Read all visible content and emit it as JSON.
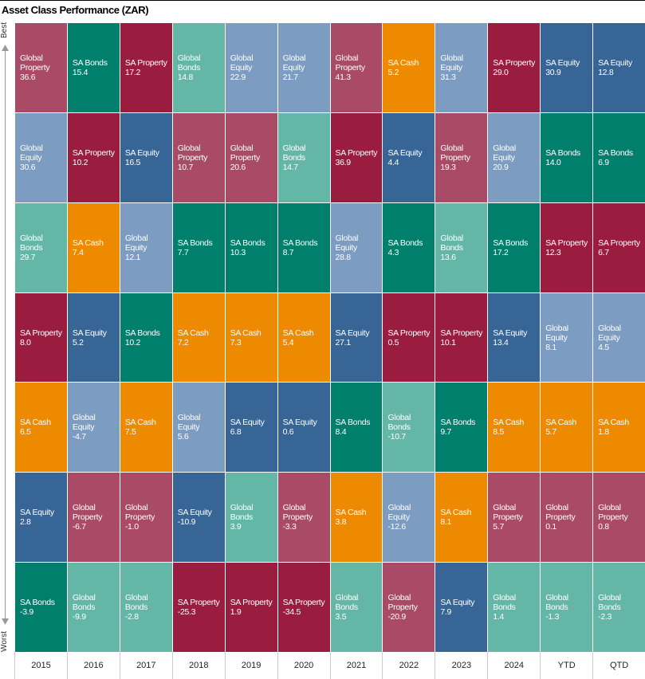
{
  "title": "Asset Class Performance (ZAR)",
  "axis": {
    "top": "Best",
    "bottom": "Worst"
  },
  "colors": {
    "Global Property": "#a94b66",
    "SA Bonds": "#007f6d",
    "SA Property": "#9a1d40",
    "Global Bonds": "#64b7a7",
    "Global Equity": "#7c9cc1",
    "SA Cash": "#ee8a00",
    "SA Equity": "#366596"
  },
  "columns": [
    {
      "label": "2015",
      "cells": [
        {
          "asset": "Global Property",
          "value": "36.6"
        },
        {
          "asset": "Global Equity",
          "value": "30.6"
        },
        {
          "asset": "Global Bonds",
          "value": "29.7"
        },
        {
          "asset": "SA Property",
          "value": "8.0"
        },
        {
          "asset": "SA Cash",
          "value": "6.5"
        },
        {
          "asset": "SA Equity",
          "value": "2.8"
        },
        {
          "asset": "SA Bonds",
          "value": "-3.9"
        }
      ]
    },
    {
      "label": "2016",
      "cells": [
        {
          "asset": "SA Bonds",
          "value": "15.4"
        },
        {
          "asset": "SA Property",
          "value": "10.2"
        },
        {
          "asset": "SA Cash",
          "value": "7.4"
        },
        {
          "asset": "SA Equity",
          "value": "5.2"
        },
        {
          "asset": "Global Equity",
          "value": "-4.7"
        },
        {
          "asset": "Global Property",
          "value": "-6.7"
        },
        {
          "asset": "Global Bonds",
          "value": "-9.9"
        }
      ]
    },
    {
      "label": "2017",
      "cells": [
        {
          "asset": "SA Property",
          "value": "17.2"
        },
        {
          "asset": "SA Equity",
          "value": "16.5"
        },
        {
          "asset": "Global Equity",
          "value": "12.1"
        },
        {
          "asset": "SA Bonds",
          "value": "10.2"
        },
        {
          "asset": "SA Cash",
          "value": "7.5"
        },
        {
          "asset": "Global Property",
          "value": "-1.0"
        },
        {
          "asset": "Global Bonds",
          "value": "-2.8"
        }
      ]
    },
    {
      "label": "2018",
      "cells": [
        {
          "asset": "Global Bonds",
          "value": "14.8"
        },
        {
          "asset": "Global Property",
          "value": "10.7"
        },
        {
          "asset": "SA Bonds",
          "value": "7.7"
        },
        {
          "asset": "SA Cash",
          "value": "7.2"
        },
        {
          "asset": "Global Equity",
          "value": "5.6"
        },
        {
          "asset": "SA Equity",
          "value": "-10.9"
        },
        {
          "asset": "SA Property",
          "value": "-25.3"
        }
      ]
    },
    {
      "label": "2019",
      "cells": [
        {
          "asset": "Global Equity",
          "value": "22.9"
        },
        {
          "asset": "Global Property",
          "value": "20.6"
        },
        {
          "asset": "SA Bonds",
          "value": "10.3"
        },
        {
          "asset": "SA Cash",
          "value": "7.3"
        },
        {
          "asset": "SA Equity",
          "value": "6.8"
        },
        {
          "asset": "Global Bonds",
          "value": "3.9"
        },
        {
          "asset": "SA Property",
          "value": "1.9"
        }
      ]
    },
    {
      "label": "2020",
      "cells": [
        {
          "asset": "Global Equity",
          "value": "21.7"
        },
        {
          "asset": "Global Bonds",
          "value": "14.7"
        },
        {
          "asset": "SA Bonds",
          "value": "8.7"
        },
        {
          "asset": "SA Cash",
          "value": "5.4"
        },
        {
          "asset": "SA Equity",
          "value": "0.6"
        },
        {
          "asset": "Global Property",
          "value": "-3.3"
        },
        {
          "asset": "SA Property",
          "value": "-34.5"
        }
      ]
    },
    {
      "label": "2021",
      "cells": [
        {
          "asset": "Global Property",
          "value": "41.3"
        },
        {
          "asset": "SA Property",
          "value": "36.9"
        },
        {
          "asset": "Global Equity",
          "value": "28.8"
        },
        {
          "asset": "SA Equity",
          "value": "27.1"
        },
        {
          "asset": "SA Bonds",
          "value": "8.4"
        },
        {
          "asset": "SA Cash",
          "value": "3.8"
        },
        {
          "asset": "Global Bonds",
          "value": "3.5"
        }
      ]
    },
    {
      "label": "2022",
      "cells": [
        {
          "asset": "SA Cash",
          "value": "5.2"
        },
        {
          "asset": "SA Equity",
          "value": "4.4"
        },
        {
          "asset": "SA Bonds",
          "value": "4.3"
        },
        {
          "asset": "SA Property",
          "value": "0.5"
        },
        {
          "asset": "Global Bonds",
          "value": "-10.7"
        },
        {
          "asset": "Global Equity",
          "value": "-12.6"
        },
        {
          "asset": "Global Property",
          "value": "-20.9"
        }
      ]
    },
    {
      "label": "2023",
      "cells": [
        {
          "asset": "Global Equity",
          "value": "31.3"
        },
        {
          "asset": "Global Property",
          "value": "19.3"
        },
        {
          "asset": "Global Bonds",
          "value": "13.6"
        },
        {
          "asset": "SA Property",
          "value": "10.1"
        },
        {
          "asset": "SA Bonds",
          "value": "9.7"
        },
        {
          "asset": "SA Cash",
          "value": "8.1"
        },
        {
          "asset": "SA Equity",
          "value": "7.9"
        }
      ]
    },
    {
      "label": "2024",
      "cells": [
        {
          "asset": "SA Property",
          "value": "29.0"
        },
        {
          "asset": "Global Equity",
          "value": "20.9"
        },
        {
          "asset": "SA Bonds",
          "value": "17.2"
        },
        {
          "asset": "SA Equity",
          "value": "13.4"
        },
        {
          "asset": "SA Cash",
          "value": "8.5"
        },
        {
          "asset": "Global Property",
          "value": "5.7"
        },
        {
          "asset": "Global Bonds",
          "value": "1.4"
        }
      ]
    },
    {
      "label": "YTD",
      "cells": [
        {
          "asset": "SA Equity",
          "value": "30.9"
        },
        {
          "asset": "SA Bonds",
          "value": "14.0"
        },
        {
          "asset": "SA Property",
          "value": "12.3"
        },
        {
          "asset": "Global Equity",
          "value": "8.1"
        },
        {
          "asset": "SA Cash",
          "value": "5.7"
        },
        {
          "asset": "Global Property",
          "value": "0.1"
        },
        {
          "asset": "Global Bonds",
          "value": "-1.3"
        }
      ]
    },
    {
      "label": "QTD",
      "cells": [
        {
          "asset": "SA Equity",
          "value": "12.8"
        },
        {
          "asset": "SA Bonds",
          "value": "6.9"
        },
        {
          "asset": "SA Property",
          "value": "6.7"
        },
        {
          "asset": "Global Equity",
          "value": "4.5"
        },
        {
          "asset": "SA Cash",
          "value": "1.8"
        },
        {
          "asset": "Global Property",
          "value": "0.8"
        },
        {
          "asset": "Global Bonds",
          "value": "-2.3"
        }
      ]
    }
  ]
}
